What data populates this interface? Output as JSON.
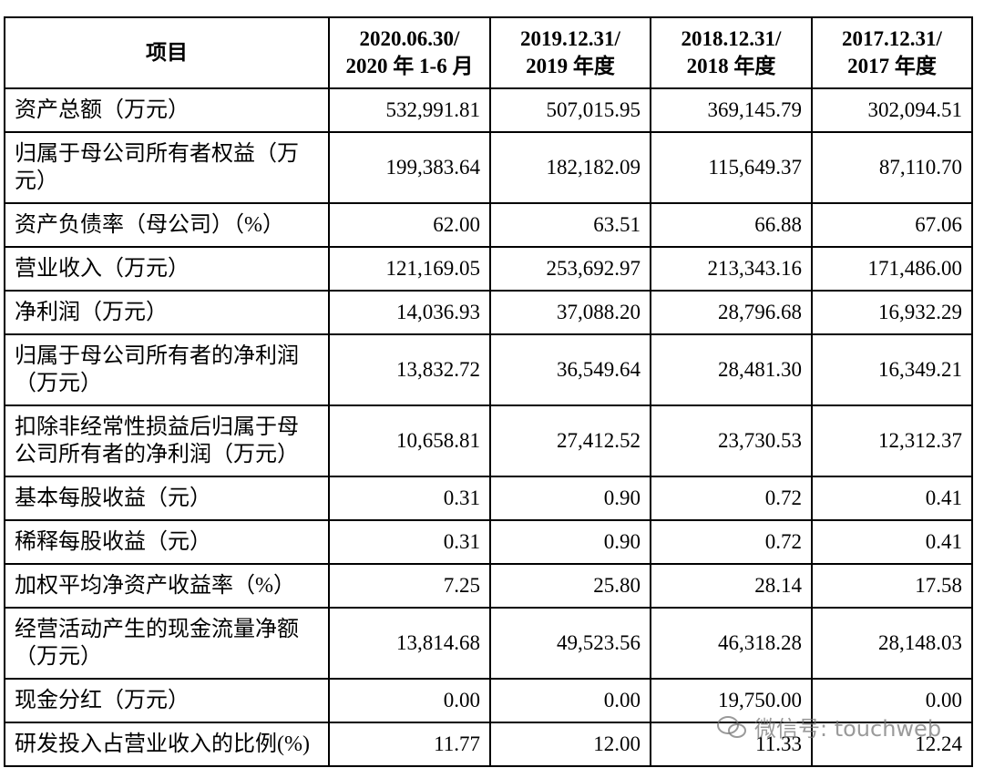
{
  "table": {
    "header": [
      "项目",
      [
        "2020.06.30/",
        "2020 年 1-6 月"
      ],
      [
        "2019.12.31/",
        "2019 年度"
      ],
      [
        "2018.12.31/",
        "2018 年度"
      ],
      [
        "2017.12.31/",
        "2017 年度"
      ]
    ],
    "rows": [
      [
        "资产总额（万元）",
        "532,991.81",
        "507,015.95",
        "369,145.79",
        "302,094.51"
      ],
      [
        "归属于母公司所有者权益（万元）",
        "199,383.64",
        "182,182.09",
        "115,649.37",
        "87,110.70"
      ],
      [
        "资产负债率（母公司）（%）",
        "62.00",
        "63.51",
        "66.88",
        "67.06"
      ],
      [
        "营业收入（万元）",
        "121,169.05",
        "253,692.97",
        "213,343.16",
        "171,486.00"
      ],
      [
        "净利润（万元）",
        "14,036.93",
        "37,088.20",
        "28,796.68",
        "16,932.29"
      ],
      [
        "归属于母公司所有者的净利润（万元）",
        "13,832.72",
        "36,549.64",
        "28,481.30",
        "16,349.21"
      ],
      [
        "扣除非经常性损益后归属于母公司所有者的净利润（万元）",
        "10,658.81",
        "27,412.52",
        "23,730.53",
        "12,312.37"
      ],
      [
        "基本每股收益（元）",
        "0.31",
        "0.90",
        "0.72",
        "0.41"
      ],
      [
        "稀释每股收益（元）",
        "0.31",
        "0.90",
        "0.72",
        "0.41"
      ],
      [
        "加权平均净资产收益率（%）",
        "7.25",
        "25.80",
        "28.14",
        "17.58"
      ],
      [
        "经营活动产生的现金流量净额（万元）",
        "13,814.68",
        "49,523.56",
        "46,318.28",
        "28,148.03"
      ],
      [
        "现金分红（万元）",
        "0.00",
        "0.00",
        "19,750.00",
        "0.00"
      ],
      [
        "研发投入占营业收入的比例(%)",
        "11.77",
        "12.00",
        "11.33",
        "12.24"
      ]
    ]
  },
  "watermark": "微信号: touchweb"
}
